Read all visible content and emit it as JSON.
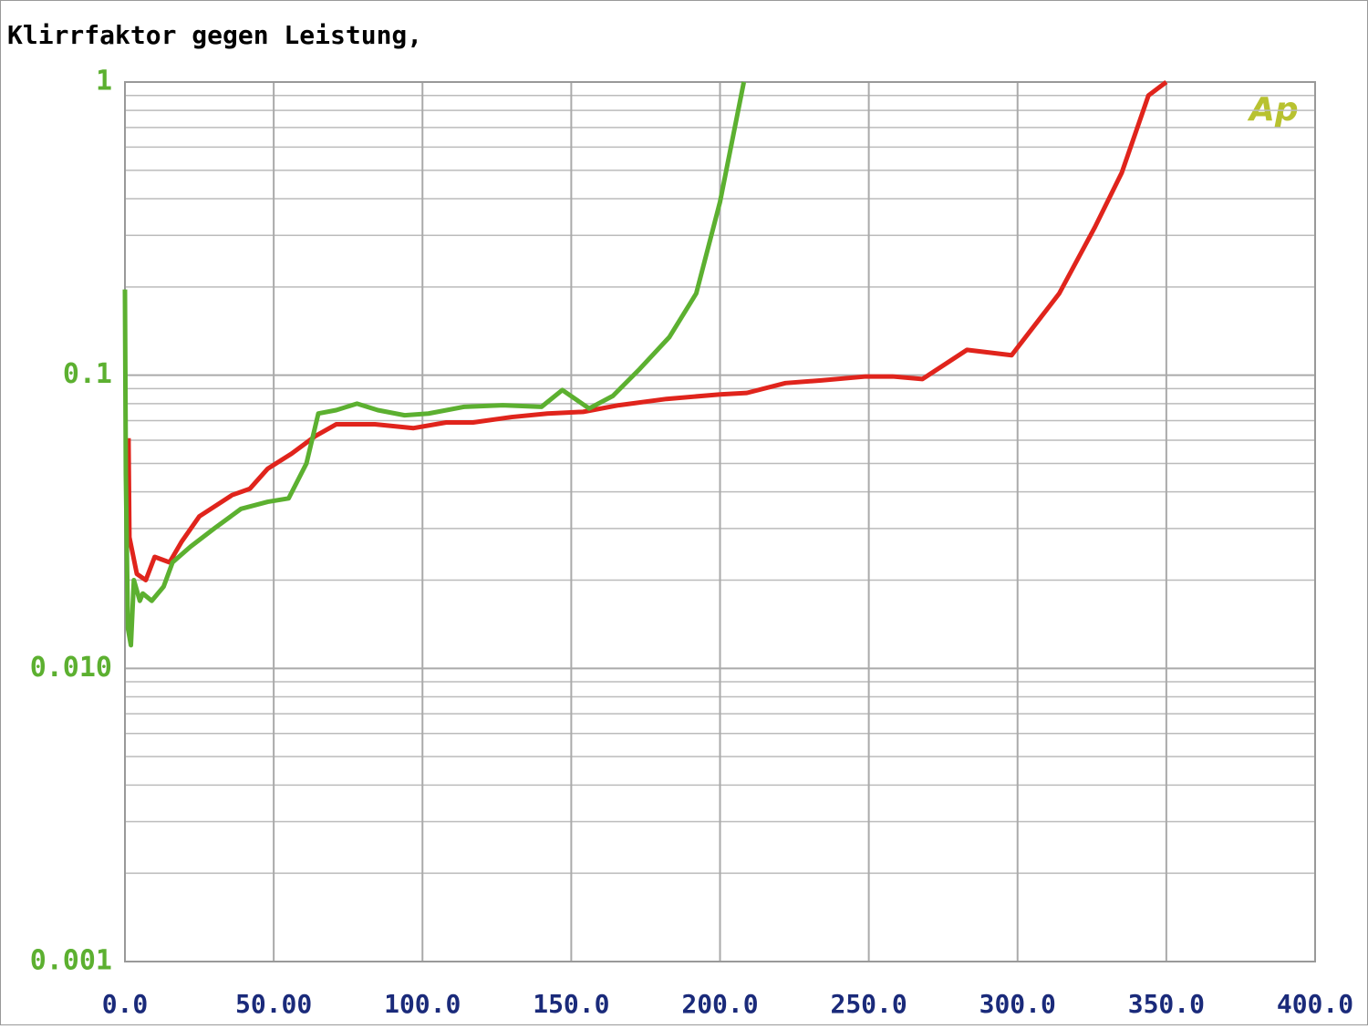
{
  "chart_data": {
    "type": "line",
    "title": "Klirrfaktor gegen Leistung,",
    "logo": "Ap",
    "yscale": "log",
    "grid": true,
    "xlim": [
      0,
      400
    ],
    "xticks": [
      {
        "value": 0,
        "label": "0.0"
      },
      {
        "value": 50,
        "label": "50.00"
      },
      {
        "value": 100,
        "label": "100.0"
      },
      {
        "value": 150,
        "label": "150.0"
      },
      {
        "value": 200,
        "label": "200.0"
      },
      {
        "value": 250,
        "label": "250.0"
      },
      {
        "value": 300,
        "label": "300.0"
      },
      {
        "value": 350,
        "label": "350.0"
      },
      {
        "value": 400,
        "label": "400.0"
      }
    ],
    "ylim": [
      0.001,
      1
    ],
    "yticks": [
      1,
      0.1,
      {
        "value": 0.01,
        "label": "0.010"
      },
      0.001
    ],
    "series": [
      {
        "color": "#e0241c",
        "x": [
          1.2,
          1.5,
          4,
          7,
          10,
          15,
          19,
          25,
          36,
          42,
          48,
          56,
          64,
          71,
          84,
          97,
          108,
          117,
          130,
          142,
          154,
          166,
          182,
          200,
          209,
          222,
          234,
          249,
          258,
          268,
          283,
          298,
          314,
          326,
          335,
          344,
          350
        ],
        "values": [
          0.061,
          0.028,
          0.021,
          0.02,
          0.024,
          0.023,
          0.027,
          0.033,
          0.039,
          0.041,
          0.048,
          0.054,
          0.062,
          0.068,
          0.068,
          0.066,
          0.069,
          0.069,
          0.072,
          0.074,
          0.075,
          0.079,
          0.083,
          0.086,
          0.087,
          0.094,
          0.096,
          0.099,
          0.099,
          0.097,
          0.122,
          0.117,
          0.19,
          0.32,
          0.49,
          0.9,
          1.0
        ]
      },
      {
        "color": "#5cb030",
        "x": [
          0,
          0.3,
          1,
          2,
          3,
          5,
          6,
          9,
          13,
          16,
          22,
          30,
          39,
          48,
          55,
          61,
          65,
          71,
          78,
          85,
          94,
          102,
          114,
          127,
          140,
          147,
          156,
          164,
          173,
          183,
          192,
          200,
          208
        ],
        "values": [
          0.196,
          0.046,
          0.0137,
          0.012,
          0.02,
          0.017,
          0.018,
          0.017,
          0.019,
          0.023,
          0.026,
          0.03,
          0.035,
          0.037,
          0.038,
          0.05,
          0.074,
          0.076,
          0.08,
          0.076,
          0.073,
          0.074,
          0.078,
          0.079,
          0.078,
          0.089,
          0.077,
          0.085,
          0.105,
          0.135,
          0.19,
          0.39,
          1.0
        ]
      }
    ]
  }
}
